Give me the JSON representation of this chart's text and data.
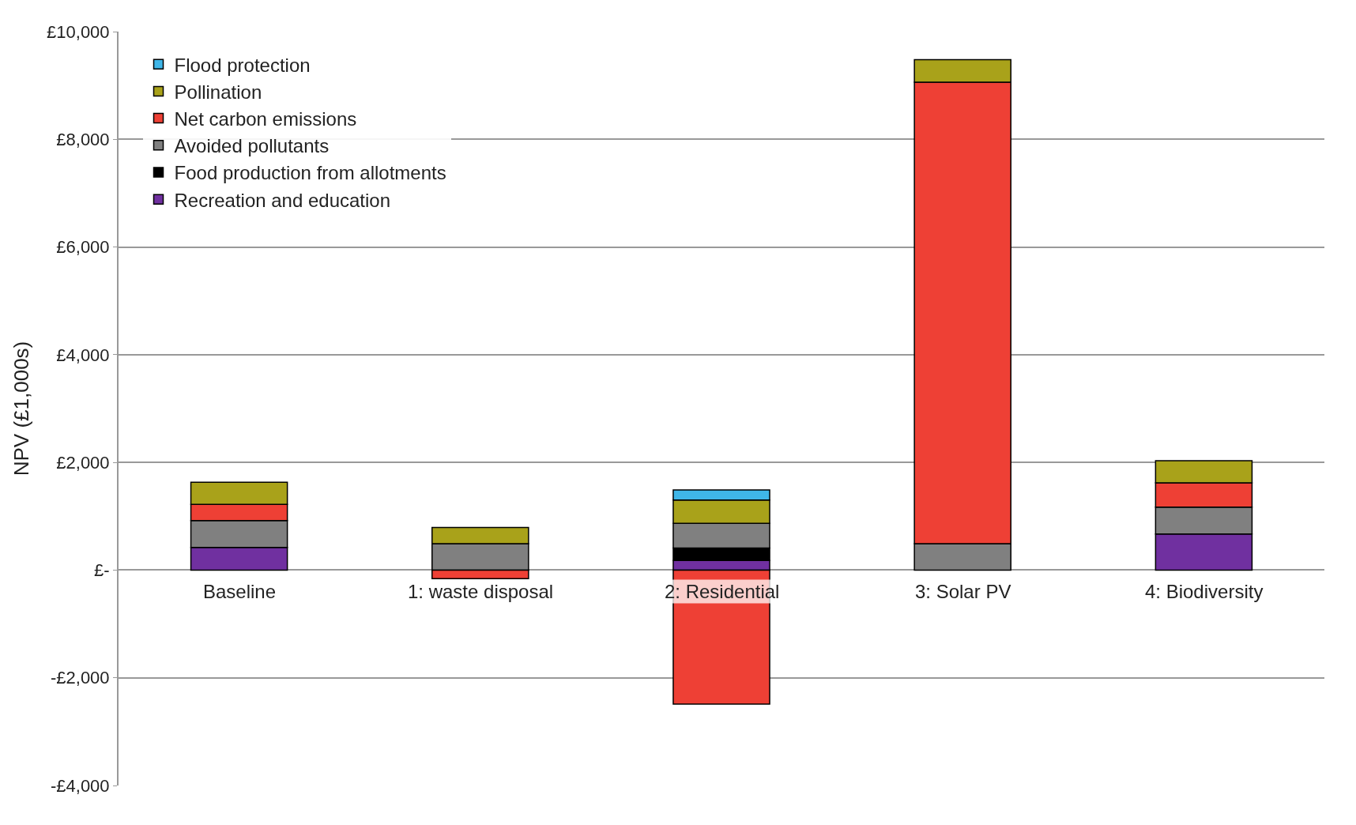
{
  "chart_data": {
    "type": "bar",
    "stacked": true,
    "ylabel": "NPV (£1,000s)",
    "categories": [
      "Baseline",
      "1: waste disposal",
      "2: Residential",
      "3: Solar PV",
      "4: Biodiversity"
    ],
    "series": [
      {
        "name": "Recreation and education",
        "color": "#7030a0",
        "values": [
          420,
          null,
          180,
          null,
          670
        ]
      },
      {
        "name": "Food production from allotments",
        "color": "#000000",
        "values": [
          null,
          null,
          230,
          null,
          null
        ]
      },
      {
        "name": "Avoided pollutants",
        "color": "#808080",
        "values": [
          500,
          490,
          460,
          490,
          500
        ]
      },
      {
        "name": "Net carbon emissions",
        "color": "#ee4035",
        "values": [
          300,
          -160,
          -2490,
          8570,
          450
        ]
      },
      {
        "name": "Pollination",
        "color": "#a9a21a",
        "values": [
          410,
          300,
          430,
          420,
          410
        ]
      },
      {
        "name": "Flood protection",
        "color": "#3fb6e8",
        "values": [
          null,
          null,
          190,
          null,
          null
        ]
      }
    ],
    "ylim": [
      -4000,
      10000
    ],
    "yticks": [
      {
        "value": -4000,
        "label": "-£4,000"
      },
      {
        "value": -2000,
        "label": "-£2,000"
      },
      {
        "value": 0,
        "label": "£-"
      },
      {
        "value": 2000,
        "label": "£2,000"
      },
      {
        "value": 4000,
        "label": "£4,000"
      },
      {
        "value": 6000,
        "label": "£6,000"
      },
      {
        "value": 8000,
        "label": "£8,000"
      },
      {
        "value": 10000,
        "label": "£10,000"
      }
    ],
    "grid": "y",
    "legend": "top left"
  }
}
